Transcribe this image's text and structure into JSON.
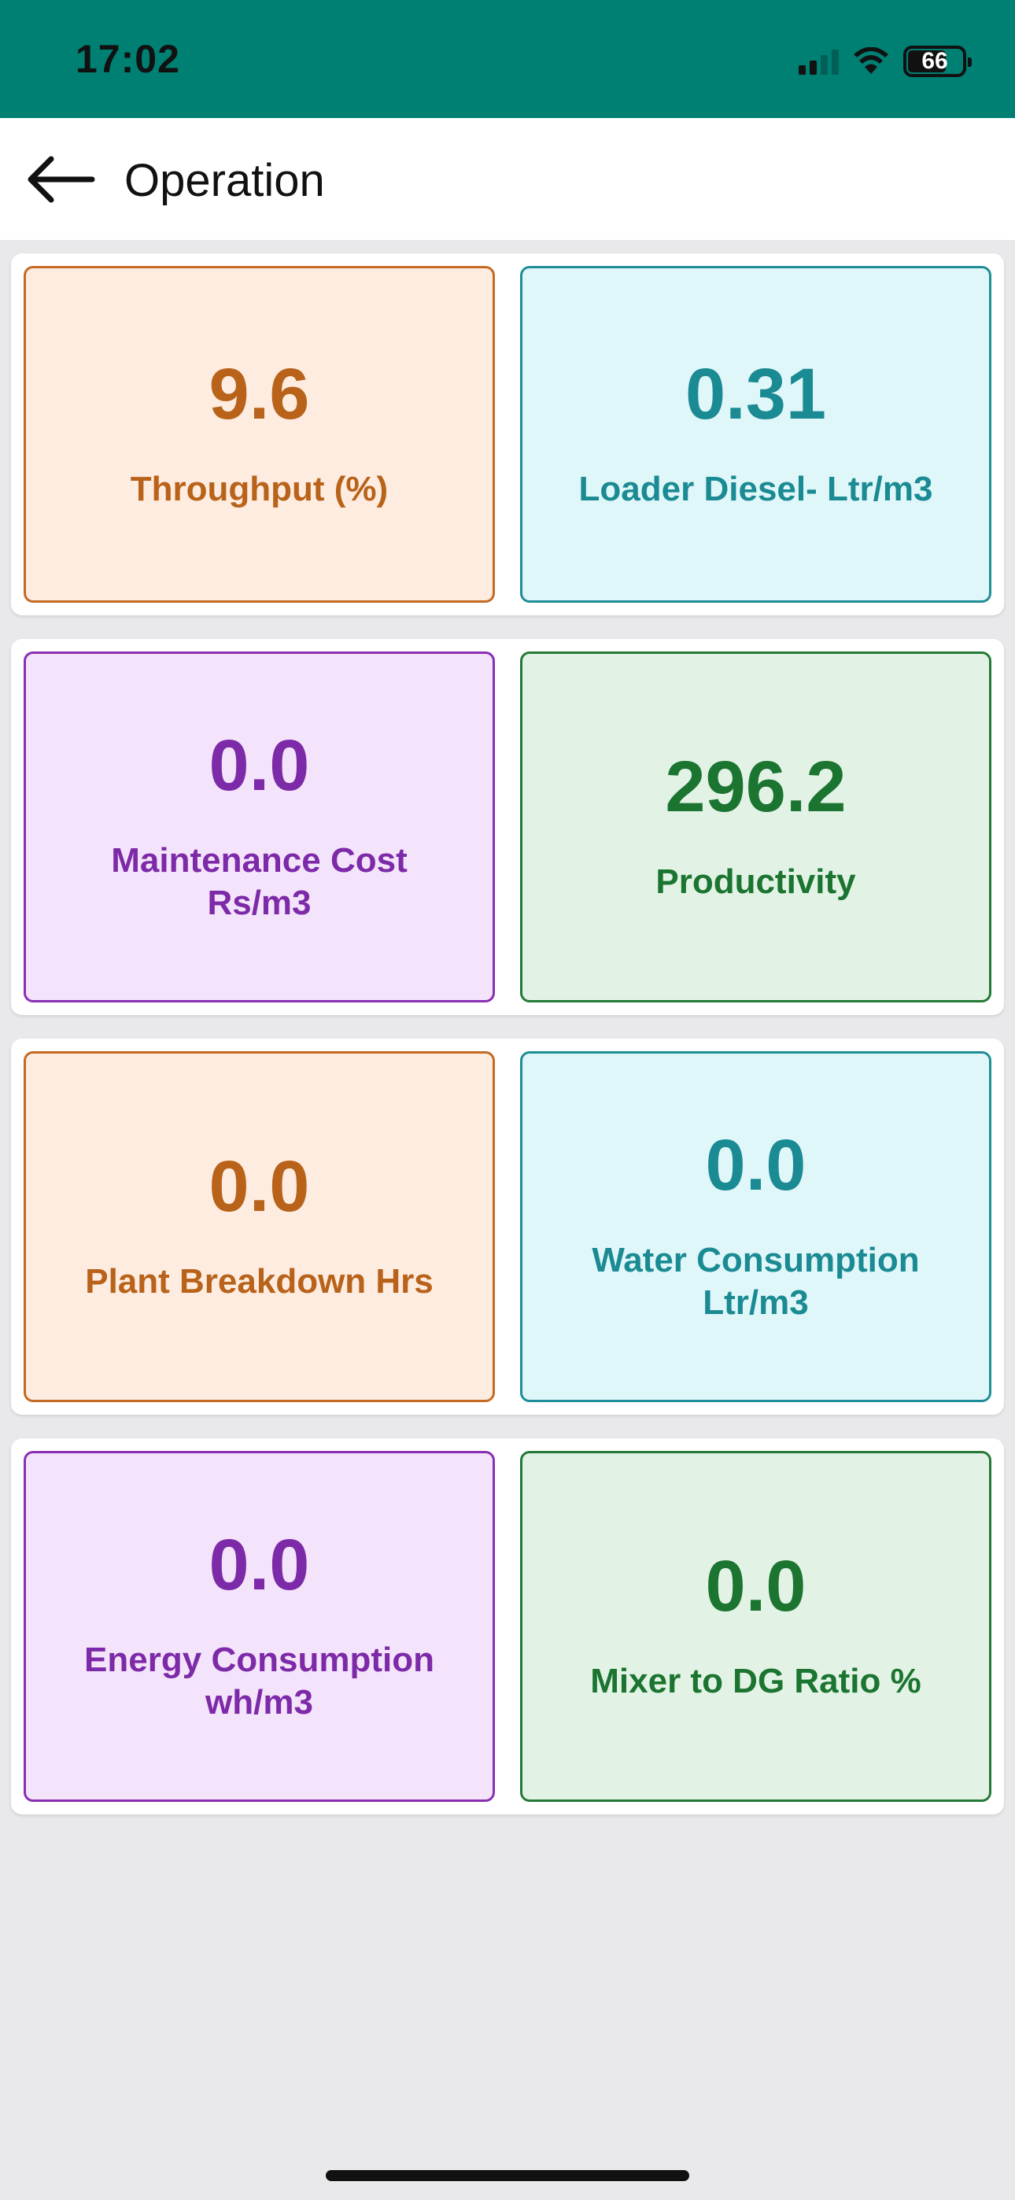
{
  "status_bar": {
    "time": "17:02",
    "battery_level": "66",
    "icons": [
      "cellular-signal-icon",
      "wifi-icon",
      "battery-icon"
    ]
  },
  "header": {
    "title": "Operation",
    "back_icon": "arrow-left-icon"
  },
  "rows": [
    [
      {
        "value": "9.6",
        "label": "Throughput (%)",
        "theme": "orange"
      },
      {
        "value": "0.31",
        "label": "Loader Diesel- Ltr/m3",
        "theme": "cyan"
      }
    ],
    [
      {
        "value": "0.0",
        "label": "Maintenance Cost Rs/m3",
        "theme": "purple"
      },
      {
        "value": "296.2",
        "label": "Productivity",
        "theme": "green"
      }
    ],
    [
      {
        "value": "0.0",
        "label": "Plant Breakdown Hrs",
        "theme": "orange"
      },
      {
        "value": "0.0",
        "label": "Water Consumption Ltr/m3",
        "theme": "cyan"
      }
    ],
    [
      {
        "value": "0.0",
        "label": "Energy Consumption wh/m3",
        "theme": "purple"
      },
      {
        "value": "0.0",
        "label": "Mixer to DG Ratio %",
        "theme": "green"
      }
    ]
  ],
  "colors": {
    "status_bar": "#007f73",
    "orange": "#b8621a",
    "cyan": "#1a8a93",
    "purple": "#7d2aa8",
    "green": "#1b7430",
    "background": "#e9e9eb"
  }
}
